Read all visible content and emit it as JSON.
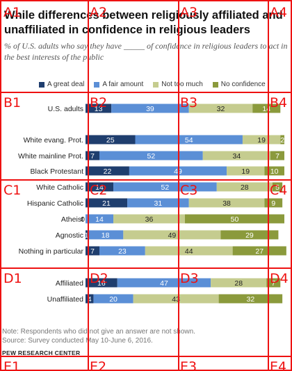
{
  "title": "While differences between religiously affiliated and unaffiliated in confidence in religious leaders",
  "subtitle": "% of U.S. adults who say they have _____ of confidence in religious leaders to act in the best interests of the public",
  "note": "Note: Respondents who did not give an answer are not shown.",
  "source": "Source: Survey conducted May 10-June 6, 2016.",
  "org": "PEW RESEARCH CENTER",
  "colors": {
    "great_deal": "#1f3e6e",
    "fair_amount": "#5b8fd6",
    "not_too_much": "#c5cc8f",
    "no_confidence": "#8b9a3c"
  },
  "grid_labels": [
    "A1",
    "A2",
    "A3",
    "A4",
    "B1",
    "B2",
    "B3",
    "B4",
    "C1",
    "C2",
    "C3",
    "C4",
    "D1",
    "D2",
    "D3",
    "D4",
    "E1",
    "E2",
    "E3",
    "E4"
  ],
  "chart_data": {
    "type": "bar",
    "orientation": "horizontal-stacked",
    "legend": [
      "A great deal",
      "A fair amount",
      "Not too much",
      "No confidence"
    ],
    "legend_position": "top",
    "categories": [
      "U.S. adults",
      "White evang. Prot.",
      "White mainline Prot.",
      "Black Protestant",
      "White Catholic",
      "Hispanic Catholic",
      "Atheist",
      "Agnostic",
      "Nothing in particular",
      "Affiliated",
      "Unaffiliated"
    ],
    "series": [
      {
        "name": "A great deal",
        "values": [
          13,
          25,
          7,
          22,
          14,
          21,
          0,
          1,
          7,
          16,
          4
        ]
      },
      {
        "name": "A fair amount",
        "values": [
          39,
          54,
          52,
          49,
          52,
          31,
          14,
          18,
          23,
          47,
          20
        ]
      },
      {
        "name": "Not too much",
        "values": [
          32,
          19,
          34,
          19,
          28,
          38,
          36,
          49,
          44,
          28,
          43
        ]
      },
      {
        "name": "No confidence",
        "values": [
          14,
          2,
          7,
          10,
          5,
          9,
          50,
          29,
          27,
          7,
          32
        ]
      }
    ]
  }
}
